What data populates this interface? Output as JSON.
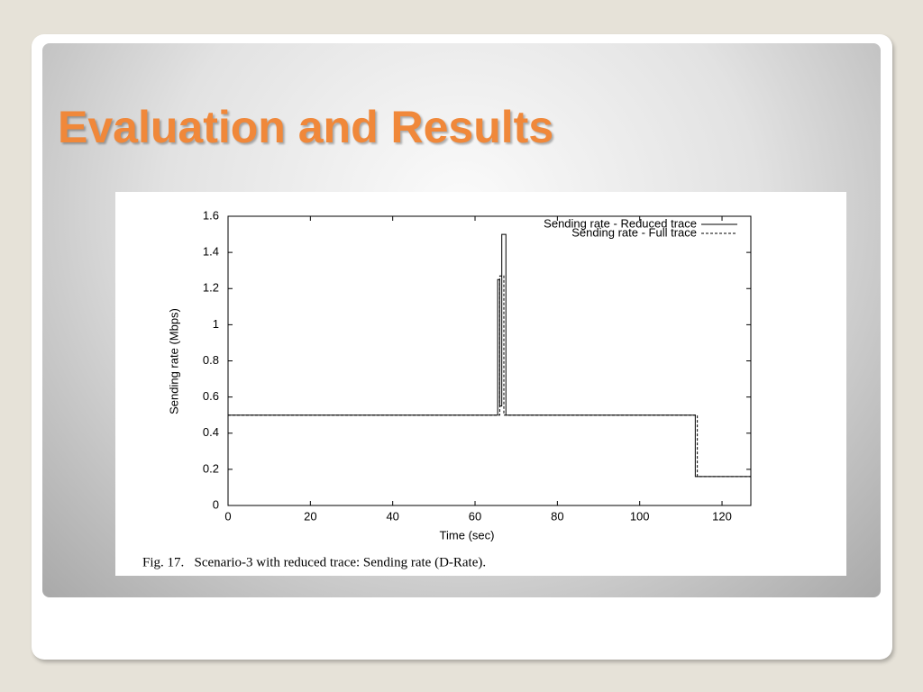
{
  "slide": {
    "title": "Evaluation and Results"
  },
  "chart_data": {
    "type": "line",
    "caption": "Fig. 17.   Scenario-3 with reduced trace: Sending rate (D-Rate).",
    "x_label": "Time (sec)",
    "y_label": "Sending rate (Mbps)",
    "xlim": [
      0,
      127
    ],
    "xticks": [
      0,
      20,
      40,
      60,
      80,
      100,
      120
    ],
    "ylim": [
      0,
      1.6
    ],
    "yticks": [
      0,
      0.2,
      0.4,
      0.6,
      0.8,
      1,
      1.2,
      1.4,
      1.6
    ],
    "legend": "upper right",
    "series": [
      {
        "name": "Sending rate - Reduced trace",
        "color": "#000000",
        "style": "solid",
        "x": [
          0,
          65.5,
          65.5,
          66,
          66,
          66.5,
          66.5,
          67.5,
          67.5,
          113.5,
          113.5,
          127
        ],
        "values": [
          0.5,
          0.5,
          1.25,
          1.25,
          0.55,
          0.55,
          1.5,
          1.5,
          0.5,
          0.5,
          0.16,
          0.16
        ]
      },
      {
        "name": "Sending rate - Full trace",
        "color": "#000000",
        "style": "dashed",
        "x": [
          0,
          66,
          66,
          67,
          67,
          114,
          114,
          127
        ],
        "values": [
          0.5,
          0.5,
          1.27,
          1.27,
          0.5,
          0.5,
          0.16,
          0.16
        ]
      }
    ]
  }
}
